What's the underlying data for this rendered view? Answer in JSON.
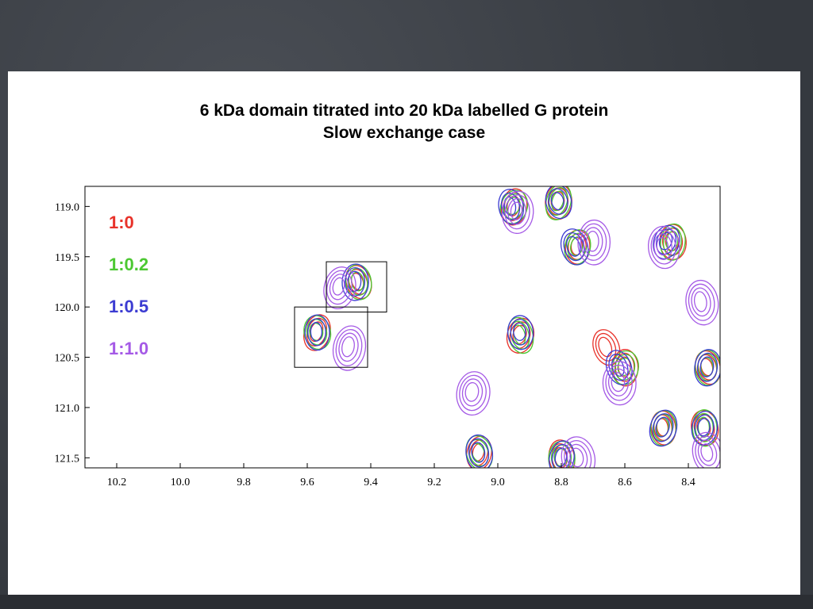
{
  "slide": {
    "title_line1": "6 kDa domain titrated into 20 kDa labelled G protein",
    "title_line2": "Slow exchange case"
  },
  "colors": {
    "background": "#3d4147",
    "ratio_1_0": "#e8322a",
    "ratio_1_0_2": "#4cc832",
    "ratio_1_0_5": "#3c3cd2",
    "ratio_1_1_0": "#a55ae6"
  },
  "chart_data": {
    "type": "scatter",
    "subtype": "2D NMR contour overlay (HSQC)",
    "title": "6 kDa domain titrated into 20 kDa labelled G protein",
    "subtitle": "Slow exchange case",
    "xlabel": "",
    "ylabel": "",
    "x_axis_reversed": true,
    "y_axis_reversed": true,
    "xlim": [
      10.3,
      8.3
    ],
    "ylim": [
      118.8,
      121.6
    ],
    "xticks": [
      "10.2",
      "10.0",
      "9.8",
      "9.6",
      "9.4",
      "9.2",
      "9.0",
      "8.8",
      "8.6",
      "8.4"
    ],
    "yticks": [
      "119.0",
      "119.5",
      "120.0",
      "120.5",
      "121.0",
      "121.5"
    ],
    "legend_position": "top-left inside",
    "series": [
      {
        "name": "1:0",
        "color": "#e8322a",
        "peaks": [
          {
            "x": 9.44,
            "y": 119.75
          },
          {
            "x": 9.57,
            "y": 120.25
          },
          {
            "x": 8.93,
            "y": 120.28
          },
          {
            "x": 9.06,
            "y": 121.45
          },
          {
            "x": 8.95,
            "y": 119.0
          },
          {
            "x": 8.81,
            "y": 118.95
          },
          {
            "x": 8.75,
            "y": 119.4
          },
          {
            "x": 8.6,
            "y": 120.6
          },
          {
            "x": 8.45,
            "y": 119.35
          },
          {
            "x": 8.48,
            "y": 121.2
          },
          {
            "x": 8.8,
            "y": 121.5
          },
          {
            "x": 8.35,
            "y": 121.2
          },
          {
            "x": 8.34,
            "y": 120.6
          },
          {
            "x": 8.66,
            "y": 120.4
          }
        ]
      },
      {
        "name": "1:0.2",
        "color": "#4cc832",
        "peaks": [
          {
            "x": 9.44,
            "y": 119.75
          },
          {
            "x": 9.57,
            "y": 120.25
          },
          {
            "x": 8.93,
            "y": 120.28
          },
          {
            "x": 9.06,
            "y": 121.45
          },
          {
            "x": 8.95,
            "y": 119.0
          },
          {
            "x": 8.81,
            "y": 118.95
          },
          {
            "x": 8.75,
            "y": 119.4
          },
          {
            "x": 8.6,
            "y": 120.6
          },
          {
            "x": 8.45,
            "y": 119.35
          },
          {
            "x": 8.48,
            "y": 121.2
          },
          {
            "x": 8.8,
            "y": 121.5
          },
          {
            "x": 8.35,
            "y": 121.2
          },
          {
            "x": 8.34,
            "y": 120.6
          }
        ]
      },
      {
        "name": "1:0.5",
        "color": "#3c3cd2",
        "peaks": [
          {
            "x": 9.45,
            "y": 119.75
          },
          {
            "x": 9.57,
            "y": 120.25
          },
          {
            "x": 8.93,
            "y": 120.25
          },
          {
            "x": 9.06,
            "y": 121.45
          },
          {
            "x": 8.96,
            "y": 119.0
          },
          {
            "x": 8.81,
            "y": 118.95
          },
          {
            "x": 8.76,
            "y": 119.4
          },
          {
            "x": 8.62,
            "y": 120.6
          },
          {
            "x": 8.47,
            "y": 119.35
          },
          {
            "x": 8.48,
            "y": 121.2
          },
          {
            "x": 8.8,
            "y": 121.5
          },
          {
            "x": 8.35,
            "y": 121.2
          },
          {
            "x": 8.34,
            "y": 120.6
          }
        ]
      },
      {
        "name": "1:1.0",
        "color": "#a55ae6",
        "peaks": [
          {
            "x": 9.5,
            "y": 119.8
          },
          {
            "x": 9.47,
            "y": 120.4
          },
          {
            "x": 9.08,
            "y": 120.85
          },
          {
            "x": 8.94,
            "y": 119.05
          },
          {
            "x": 8.7,
            "y": 119.35
          },
          {
            "x": 8.62,
            "y": 120.75
          },
          {
            "x": 8.48,
            "y": 119.4
          },
          {
            "x": 8.36,
            "y": 119.95
          },
          {
            "x": 8.75,
            "y": 121.5
          },
          {
            "x": 8.34,
            "y": 121.45
          }
        ]
      }
    ],
    "annotation_boxes": [
      {
        "x_range": [
          9.54,
          9.35
        ],
        "y_range": [
          119.55,
          120.05
        ]
      },
      {
        "x_range": [
          9.64,
          9.41
        ],
        "y_range": [
          120.0,
          120.6
        ]
      }
    ]
  }
}
